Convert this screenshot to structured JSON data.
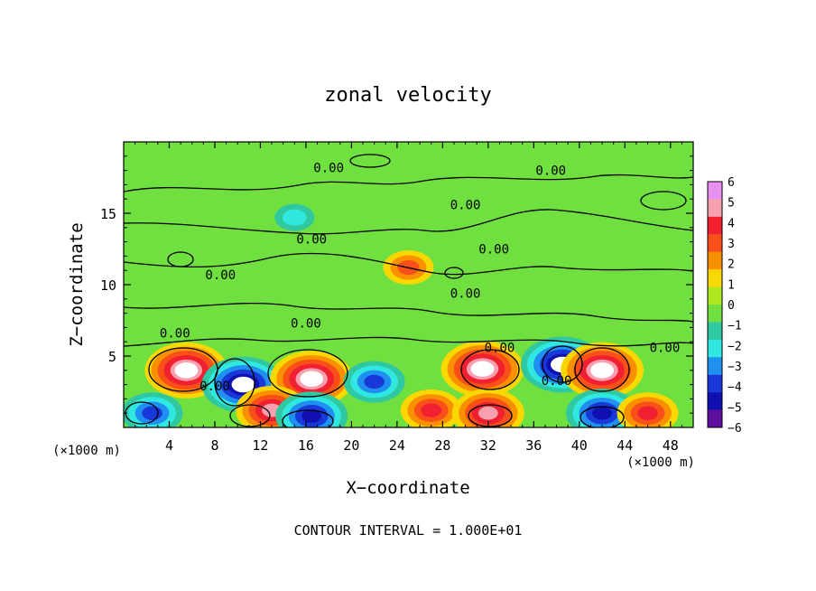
{
  "chart_data": {
    "type": "heatmap",
    "title": "zonal velocity",
    "xlabel": "X−coordinate",
    "ylabel": "Z−coordinate",
    "x_unit_left": "(×1000 m)",
    "x_unit_right": "(×1000 m)",
    "footer": "CONTOUR INTERVAL = 1.000E+01",
    "xlim": [
      0,
      50
    ],
    "ylim": [
      0,
      20
    ],
    "x_ticks": [
      4,
      8,
      12,
      16,
      20,
      24,
      28,
      32,
      36,
      40,
      44,
      48
    ],
    "y_ticks": [
      5,
      10,
      15
    ],
    "colorbar": {
      "vmin": -6,
      "vmax": 6,
      "tick_values": [
        6,
        5,
        4,
        3,
        2,
        1,
        0,
        -1,
        -2,
        -3,
        -4,
        -5,
        -6
      ],
      "tick_labels": [
        "6",
        "5",
        "4",
        "3",
        "2",
        "1",
        "0",
        "−1",
        "−2",
        "−3",
        "−4",
        "−5",
        "−6"
      ],
      "colors": [
        "#e890f0",
        "#f8a0b0",
        "#f02030",
        "#f85018",
        "#f89000",
        "#f8d800",
        "#b0e820",
        "#70e040",
        "#30c8a0",
        "#30e8e0",
        "#2090f0",
        "#1838d8",
        "#1010b0",
        "#6010a0"
      ]
    },
    "contour_labels": [
      {
        "text": "0.00",
        "x": 18.0,
        "z": 18.2
      },
      {
        "text": "0.00",
        "x": 37.5,
        "z": 18.0
      },
      {
        "text": "0.00",
        "x": 30.0,
        "z": 15.6
      },
      {
        "text": "0.00",
        "x": 16.5,
        "z": 13.2
      },
      {
        "text": "0.00",
        "x": 32.5,
        "z": 12.5
      },
      {
        "text": "0.00",
        "x": 8.5,
        "z": 10.7
      },
      {
        "text": "0.00",
        "x": 30.0,
        "z": 9.4
      },
      {
        "text": "0.00",
        "x": 16.0,
        "z": 7.3
      },
      {
        "text": "0.00",
        "x": 4.5,
        "z": 6.6
      },
      {
        "text": "0.00",
        "x": 33.0,
        "z": 5.6
      },
      {
        "text": "0.00",
        "x": 47.5,
        "z": 5.6
      },
      {
        "text": "0.00",
        "x": 8.0,
        "z": 2.9
      },
      {
        "text": "0.00",
        "x": 38.0,
        "z": 3.3
      }
    ],
    "cells": [
      {
        "x": 5.5,
        "z": 4.0,
        "v": 6
      },
      {
        "x": 10.5,
        "z": 3.0,
        "v": -6
      },
      {
        "x": 16.5,
        "z": 3.4,
        "v": 6
      },
      {
        "x": 22,
        "z": 3.2,
        "v": -4
      },
      {
        "x": 31.5,
        "z": 4.1,
        "v": 6
      },
      {
        "x": 38.5,
        "z": 4.4,
        "v": -6
      },
      {
        "x": 42,
        "z": 4.0,
        "v": 6
      },
      {
        "x": 2.5,
        "z": 1.0,
        "v": -4
      },
      {
        "x": 13,
        "z": 1.2,
        "v": 5
      },
      {
        "x": 16.5,
        "z": 0.8,
        "v": -5
      },
      {
        "x": 27,
        "z": 1.2,
        "v": 4
      },
      {
        "x": 32,
        "z": 1.0,
        "v": 5
      },
      {
        "x": 42,
        "z": 1.0,
        "v": -5
      },
      {
        "x": 46,
        "z": 1.0,
        "v": 4
      },
      {
        "x": 25,
        "z": 11.2,
        "v": 3
      },
      {
        "x": 15,
        "z": 14.7,
        "v": -1.5
      }
    ]
  }
}
